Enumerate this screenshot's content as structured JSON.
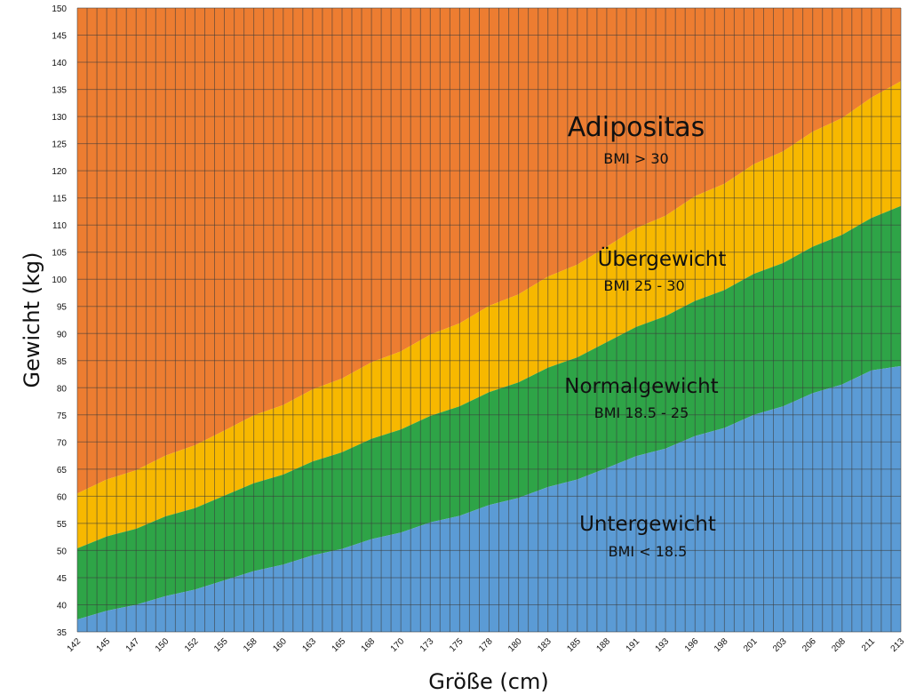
{
  "chart_data": {
    "type": "area",
    "xlabel": "Größe (cm)",
    "ylabel": "Gewicht (kg)",
    "ylim": [
      35,
      150
    ],
    "y_ticks": [
      35,
      40,
      45,
      50,
      55,
      60,
      65,
      70,
      75,
      80,
      85,
      90,
      95,
      100,
      105,
      110,
      115,
      120,
      125,
      130,
      135,
      140,
      145,
      150
    ],
    "categories": [
      "142",
      "145",
      "147",
      "150",
      "152",
      "155",
      "158",
      "160",
      "163",
      "165",
      "168",
      "170",
      "173",
      "175",
      "178",
      "180",
      "183",
      "185",
      "188",
      "191",
      "193",
      "196",
      "198",
      "201",
      "203",
      "206",
      "208",
      "211",
      "213"
    ],
    "series": [
      {
        "name": "Untergewicht",
        "sub": "BMI < 18.5",
        "color": "#5b9bd5",
        "values": [
          37.3,
          38.9,
          40.0,
          41.6,
          42.8,
          44.5,
          46.2,
          47.4,
          49.1,
          50.3,
          52.1,
          53.3,
          55.2,
          56.4,
          58.4,
          59.7,
          61.7,
          63.1,
          65.2,
          67.4,
          68.8,
          71.1,
          72.6,
          75.0,
          76.6,
          79.0,
          80.6,
          83.2,
          84.0
        ]
      },
      {
        "name": "Normalgewicht",
        "sub": "BMI 18.5 - 25",
        "color": "#2ea447",
        "values": [
          50.4,
          52.6,
          54.0,
          56.3,
          57.8,
          60.1,
          62.4,
          64.0,
          66.4,
          68.1,
          70.6,
          72.3,
          74.8,
          76.6,
          79.2,
          81.0,
          83.7,
          85.6,
          88.4,
          91.2,
          93.2,
          96.0,
          98.0,
          101.0,
          103.0,
          106.0,
          108.2,
          111.3,
          113.5
        ]
      },
      {
        "name": "Übergewicht",
        "sub": "BMI 25 - 30",
        "color": "#f7b800",
        "values": [
          60.5,
          63.1,
          64.8,
          67.5,
          69.4,
          72.1,
          74.9,
          76.8,
          79.7,
          81.7,
          84.7,
          86.7,
          89.8,
          91.9,
          95.1,
          97.2,
          100.5,
          102.7,
          106.0,
          109.4,
          111.7,
          115.3,
          117.6,
          121.2,
          123.6,
          127.2,
          129.7,
          133.5,
          136.5
        ]
      },
      {
        "name": "Adipositas",
        "sub": "BMI > 30",
        "color": "#ed7d31",
        "values": [
          150,
          150,
          150,
          150,
          150,
          150,
          150,
          150,
          150,
          150,
          150,
          150,
          150,
          150,
          150,
          150,
          150,
          150,
          150,
          150,
          150,
          150,
          150,
          150,
          150,
          150,
          150,
          150,
          150
        ]
      }
    ],
    "grid": true,
    "legend": "inline labels"
  }
}
